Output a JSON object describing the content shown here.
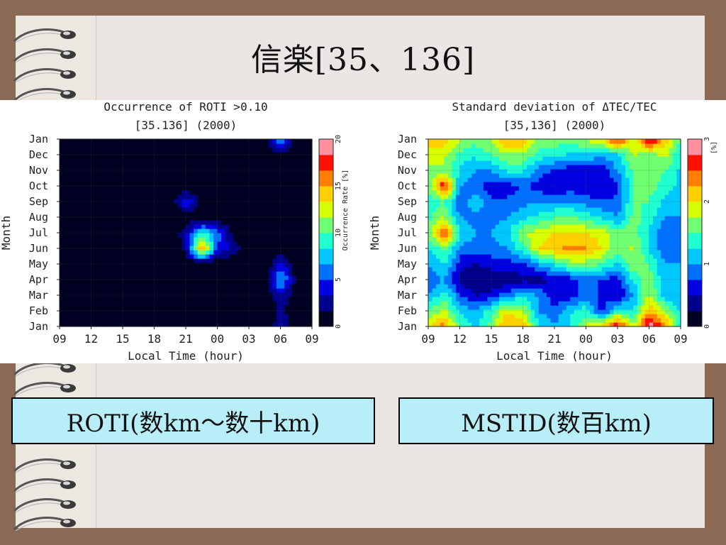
{
  "slide": {
    "title": "信楽[35、136]",
    "caption_left": "ROTI(数km～数十km)",
    "caption_right": "MSTID(数百km)"
  },
  "palette": [
    "#000022",
    "#00008a",
    "#0000e0",
    "#0070ff",
    "#00c8ff",
    "#20ffd0",
    "#70ff70",
    "#d8ff00",
    "#ffd000",
    "#ff8000",
    "#ff1000",
    "#ff90a0"
  ],
  "chart_data": [
    {
      "type": "heatmap",
      "title": "Occurrence of ROTI >0.10",
      "subtitle": "[35.136]  (2000)",
      "xlabel": "Local Time (hour)",
      "ylabel": "Month",
      "x_ticks": [
        "09",
        "12",
        "15",
        "18",
        "21",
        "00",
        "03",
        "06",
        "09"
      ],
      "y_ticks": [
        "Jan",
        "Feb",
        "Mar",
        "Apr",
        "May",
        "Jun",
        "Jul",
        "Aug",
        "Sep",
        "Oct",
        "Nov",
        "Dec",
        "Jan"
      ],
      "colorbar_label": "Occurrence Rate [%]",
      "colorbar_ticks": [
        "0",
        "5",
        "10",
        "15",
        "20"
      ],
      "zlim": [
        0,
        20
      ],
      "x": [
        9,
        10.5,
        12,
        13.5,
        15,
        16.5,
        18,
        19.5,
        21,
        22.5,
        24,
        25.5,
        27,
        28.5,
        30,
        31.5,
        33
      ],
      "months": [
        "Jan",
        "Feb",
        "Mar",
        "Apr",
        "May",
        "Jun",
        "Jul",
        "Aug",
        "Sep",
        "Oct",
        "Nov",
        "Dec",
        "Jan"
      ],
      "z": [
        [
          0,
          0,
          0,
          0,
          0,
          0,
          0,
          0,
          0,
          0,
          0,
          0,
          0,
          0,
          3,
          1,
          0
        ],
        [
          0,
          0,
          0,
          0.5,
          0,
          0,
          0,
          0,
          0,
          0,
          0.5,
          0,
          0,
          0,
          2,
          0.5,
          0
        ],
        [
          0,
          0,
          0,
          0,
          0,
          0,
          0,
          0,
          0,
          0,
          1.5,
          0,
          0,
          0,
          3,
          1,
          0
        ],
        [
          0,
          0,
          0,
          0,
          0,
          0,
          0,
          0,
          0,
          0,
          0,
          0,
          0,
          0,
          8,
          1,
          0
        ],
        [
          0,
          0,
          0,
          0,
          0,
          0,
          0,
          0,
          0,
          0,
          0,
          0,
          0,
          0,
          4,
          0.5,
          0
        ],
        [
          0,
          0,
          0,
          0,
          0,
          1.5,
          0,
          0,
          2,
          16,
          5,
          3,
          0,
          0,
          0,
          0,
          0
        ],
        [
          0,
          0,
          0,
          0,
          0,
          0,
          0,
          0,
          3,
          9,
          6,
          1,
          0,
          0,
          0,
          0,
          0
        ],
        [
          0,
          0,
          0,
          0,
          0,
          0,
          0,
          0,
          0,
          0,
          0,
          0,
          0,
          0,
          0,
          0,
          0
        ],
        [
          0,
          0,
          0,
          0,
          0,
          0,
          0,
          0,
          5,
          1,
          0,
          0,
          0,
          0,
          0,
          0,
          0
        ],
        [
          0,
          0,
          0,
          0,
          0,
          0,
          0,
          0,
          0,
          0,
          0,
          0,
          0,
          0,
          0,
          0,
          0
        ],
        [
          0,
          0,
          0,
          0,
          0,
          0,
          0,
          0,
          0,
          0,
          0,
          0,
          0,
          0,
          0,
          0,
          0
        ],
        [
          0,
          0,
          0,
          0,
          0,
          0,
          0,
          0,
          0,
          0,
          0,
          0,
          0,
          0,
          1,
          0,
          0
        ],
        [
          0,
          0,
          0,
          0,
          0,
          0,
          0,
          0,
          0,
          0,
          0,
          0,
          0,
          0,
          7,
          1,
          0
        ]
      ]
    },
    {
      "type": "heatmap",
      "title": "Standard deviation of ΔTEC/TEC",
      "subtitle": "[35,136]  (2000)",
      "xlabel": "Local Time (hour)",
      "ylabel": "Month",
      "x_ticks": [
        "09",
        "12",
        "15",
        "18",
        "21",
        "00",
        "03",
        "06",
        "09"
      ],
      "y_ticks": [
        "Jan",
        "Feb",
        "Mar",
        "Apr",
        "May",
        "Jun",
        "Jul",
        "Aug",
        "Sep",
        "Oct",
        "Nov",
        "Dec",
        "Jan"
      ],
      "colorbar_label": "[%]",
      "colorbar_ticks": [
        "0",
        "1",
        "2",
        "3"
      ],
      "zlim": [
        0,
        3
      ],
      "x": [
        9,
        10.5,
        12,
        13.5,
        15,
        16.5,
        18,
        19.5,
        21,
        22.5,
        24,
        25.5,
        27,
        28.5,
        30,
        31.5,
        33
      ],
      "months": [
        "Jan",
        "Feb",
        "Mar",
        "Apr",
        "May",
        "Jun",
        "Jul",
        "Aug",
        "Sep",
        "Oct",
        "Nov",
        "Dec",
        "Jan"
      ],
      "z": [
        [
          2.0,
          2.4,
          1.5,
          1.2,
          1.6,
          2.3,
          2.2,
          1.3,
          1.0,
          1.3,
          1.8,
          2.2,
          2.8,
          1.8,
          3.0,
          2.4,
          1.4
        ],
        [
          1.5,
          1.8,
          1.2,
          1.0,
          1.4,
          2.0,
          1.8,
          1.0,
          0.8,
          1.2,
          1.4,
          0.6,
          1.4,
          1.2,
          2.2,
          1.8,
          1.2
        ],
        [
          1.0,
          1.4,
          0.8,
          0.5,
          0.6,
          0.9,
          1.2,
          1.0,
          0.6,
          0.6,
          0.9,
          0.7,
          0.5,
          1.0,
          1.8,
          1.1,
          1.0
        ],
        [
          0.8,
          1.0,
          0.4,
          0.2,
          0.3,
          0.3,
          0.4,
          0.4,
          0.5,
          0.6,
          0.9,
          0.7,
          0.6,
          1.3,
          1.7,
          1.0,
          1.0
        ],
        [
          1.0,
          1.3,
          0.6,
          0.5,
          0.6,
          0.6,
          0.7,
          1.0,
          1.3,
          1.6,
          1.6,
          1.5,
          1.2,
          1.7,
          1.5,
          1.0,
          1.0
        ],
        [
          1.2,
          1.6,
          0.9,
          0.9,
          0.9,
          1.0,
          1.4,
          2.0,
          2.2,
          2.3,
          2.3,
          2.0,
          1.6,
          1.8,
          1.2,
          0.8,
          1.0
        ],
        [
          1.6,
          2.6,
          1.3,
          1.0,
          1.0,
          1.2,
          1.7,
          1.9,
          2.0,
          2.0,
          2.0,
          1.9,
          1.6,
          1.6,
          1.2,
          0.8,
          0.9
        ],
        [
          1.4,
          1.8,
          1.0,
          0.9,
          0.9,
          1.0,
          1.2,
          1.3,
          1.5,
          1.6,
          1.4,
          1.2,
          1.0,
          1.6,
          1.4,
          1.0,
          1.0
        ],
        [
          1.3,
          1.5,
          0.8,
          1.2,
          0.8,
          0.8,
          0.9,
          1.0,
          1.0,
          1.0,
          0.9,
          0.8,
          0.8,
          1.5,
          1.5,
          1.2,
          1.0
        ],
        [
          1.5,
          2.8,
          1.0,
          0.8,
          0.6,
          0.6,
          0.8,
          0.6,
          0.5,
          0.6,
          0.5,
          0.5,
          0.7,
          1.5,
          1.6,
          1.4,
          1.2
        ],
        [
          1.6,
          1.7,
          1.2,
          1.0,
          1.0,
          1.3,
          1.3,
          0.9,
          0.7,
          0.6,
          0.6,
          0.6,
          1.0,
          1.5,
          1.6,
          1.5,
          1.2
        ],
        [
          1.9,
          1.8,
          1.4,
          1.3,
          1.5,
          1.7,
          1.7,
          1.4,
          1.3,
          1.2,
          1.2,
          1.0,
          1.2,
          1.8,
          1.6,
          1.8,
          1.3
        ],
        [
          2.1,
          2.2,
          1.8,
          1.6,
          1.8,
          2.3,
          2.3,
          1.6,
          1.7,
          1.6,
          1.8,
          2.0,
          2.8,
          1.7,
          2.9,
          2.2,
          1.5
        ]
      ]
    }
  ]
}
